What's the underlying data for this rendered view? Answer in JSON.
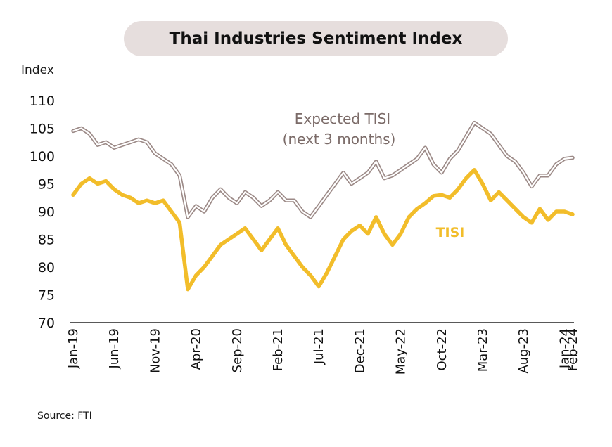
{
  "title": "Thai Industries Sentiment Index",
  "source": "Source: FTI",
  "chart_data": {
    "type": "line",
    "title": "Thai Industries Sentiment Index",
    "ylabel": "Index",
    "xlabel": "",
    "ylim": [
      70,
      110
    ],
    "yticks": [
      70,
      75,
      80,
      85,
      90,
      95,
      100,
      105,
      110
    ],
    "x": [
      "Jan-19",
      "Feb-19",
      "Mar-19",
      "Apr-19",
      "May-19",
      "Jun-19",
      "Jul-19",
      "Aug-19",
      "Sep-19",
      "Oct-19",
      "Nov-19",
      "Dec-19",
      "Jan-20",
      "Feb-20",
      "Mar-20",
      "Apr-20",
      "May-20",
      "Jun-20",
      "Jul-20",
      "Aug-20",
      "Sep-20",
      "Oct-20",
      "Nov-20",
      "Dec-20",
      "Jan-21",
      "Feb-21",
      "Mar-21",
      "Apr-21",
      "May-21",
      "Jun-21",
      "Jul-21",
      "Aug-21",
      "Sep-21",
      "Oct-21",
      "Nov-21",
      "Dec-21",
      "Jan-22",
      "Feb-22",
      "Mar-22",
      "Apr-22",
      "May-22",
      "Jun-22",
      "Jul-22",
      "Aug-22",
      "Sep-22",
      "Oct-22",
      "Nov-22",
      "Dec-22",
      "Jan-23",
      "Feb-23",
      "Mar-23",
      "Apr-23",
      "May-23",
      "Jun-23",
      "Jul-23",
      "Aug-23",
      "Sep-23",
      "Oct-23",
      "Nov-23",
      "Dec-23",
      "Jan-24",
      "Feb-24"
    ],
    "xtick_labels": [
      "Jan-19",
      "Jun-19",
      "Nov-19",
      "Apr-20",
      "Sep-20",
      "Feb-21",
      "Jul-21",
      "Dec-21",
      "May-22",
      "Oct-22",
      "Mar-23",
      "Aug-23",
      "Jan-24",
      "Feb-24"
    ],
    "series": [
      {
        "name": "Expected TISI (next 3 months)",
        "color": "#9c8a87",
        "style": "double",
        "values": [
          104.5,
          105.0,
          104.0,
          102.0,
          102.5,
          101.5,
          102.0,
          102.5,
          103.0,
          102.5,
          100.5,
          99.5,
          98.5,
          96.5,
          89.0,
          91.0,
          90.0,
          92.5,
          94.0,
          92.5,
          91.5,
          93.5,
          92.5,
          91.0,
          92.0,
          93.5,
          92.0,
          92.0,
          90.0,
          89.0,
          91.0,
          93.0,
          95.0,
          97.0,
          95.0,
          96.0,
          97.0,
          99.0,
          96.0,
          96.5,
          97.5,
          98.5,
          99.5,
          101.5,
          98.5,
          97.0,
          99.5,
          101.0,
          103.5,
          106.0,
          105.0,
          104.0,
          102.0,
          100.0,
          99.0,
          97.0,
          94.5,
          96.5,
          96.5,
          98.5,
          99.5,
          99.7
        ]
      },
      {
        "name": "TISI",
        "color": "#f2bd2a",
        "style": "solid",
        "values": [
          93.0,
          95.0,
          96.0,
          95.0,
          95.5,
          94.0,
          93.0,
          92.5,
          91.5,
          92.0,
          91.5,
          92.0,
          90.0,
          88.0,
          76.0,
          78.5,
          80.0,
          82.0,
          84.0,
          85.0,
          86.0,
          87.0,
          85.0,
          83.0,
          85.0,
          87.0,
          84.0,
          82.0,
          80.0,
          78.5,
          76.5,
          79.0,
          82.0,
          85.0,
          86.5,
          87.5,
          86.0,
          89.0,
          86.0,
          84.0,
          86.0,
          89.0,
          90.5,
          91.5,
          92.8,
          93.0,
          92.5,
          94.0,
          96.0,
          97.5,
          95.0,
          92.0,
          93.5,
          92.0,
          90.5,
          89.0,
          88.0,
          90.5,
          88.5,
          90.0,
          90.0,
          89.5
        ]
      }
    ],
    "annotations": [
      {
        "text": "Expected TISI",
        "series": 0
      },
      {
        "text": "(next 3 months)",
        "series": 0
      },
      {
        "text": "TISI",
        "series": 1
      }
    ],
    "grid": false
  }
}
